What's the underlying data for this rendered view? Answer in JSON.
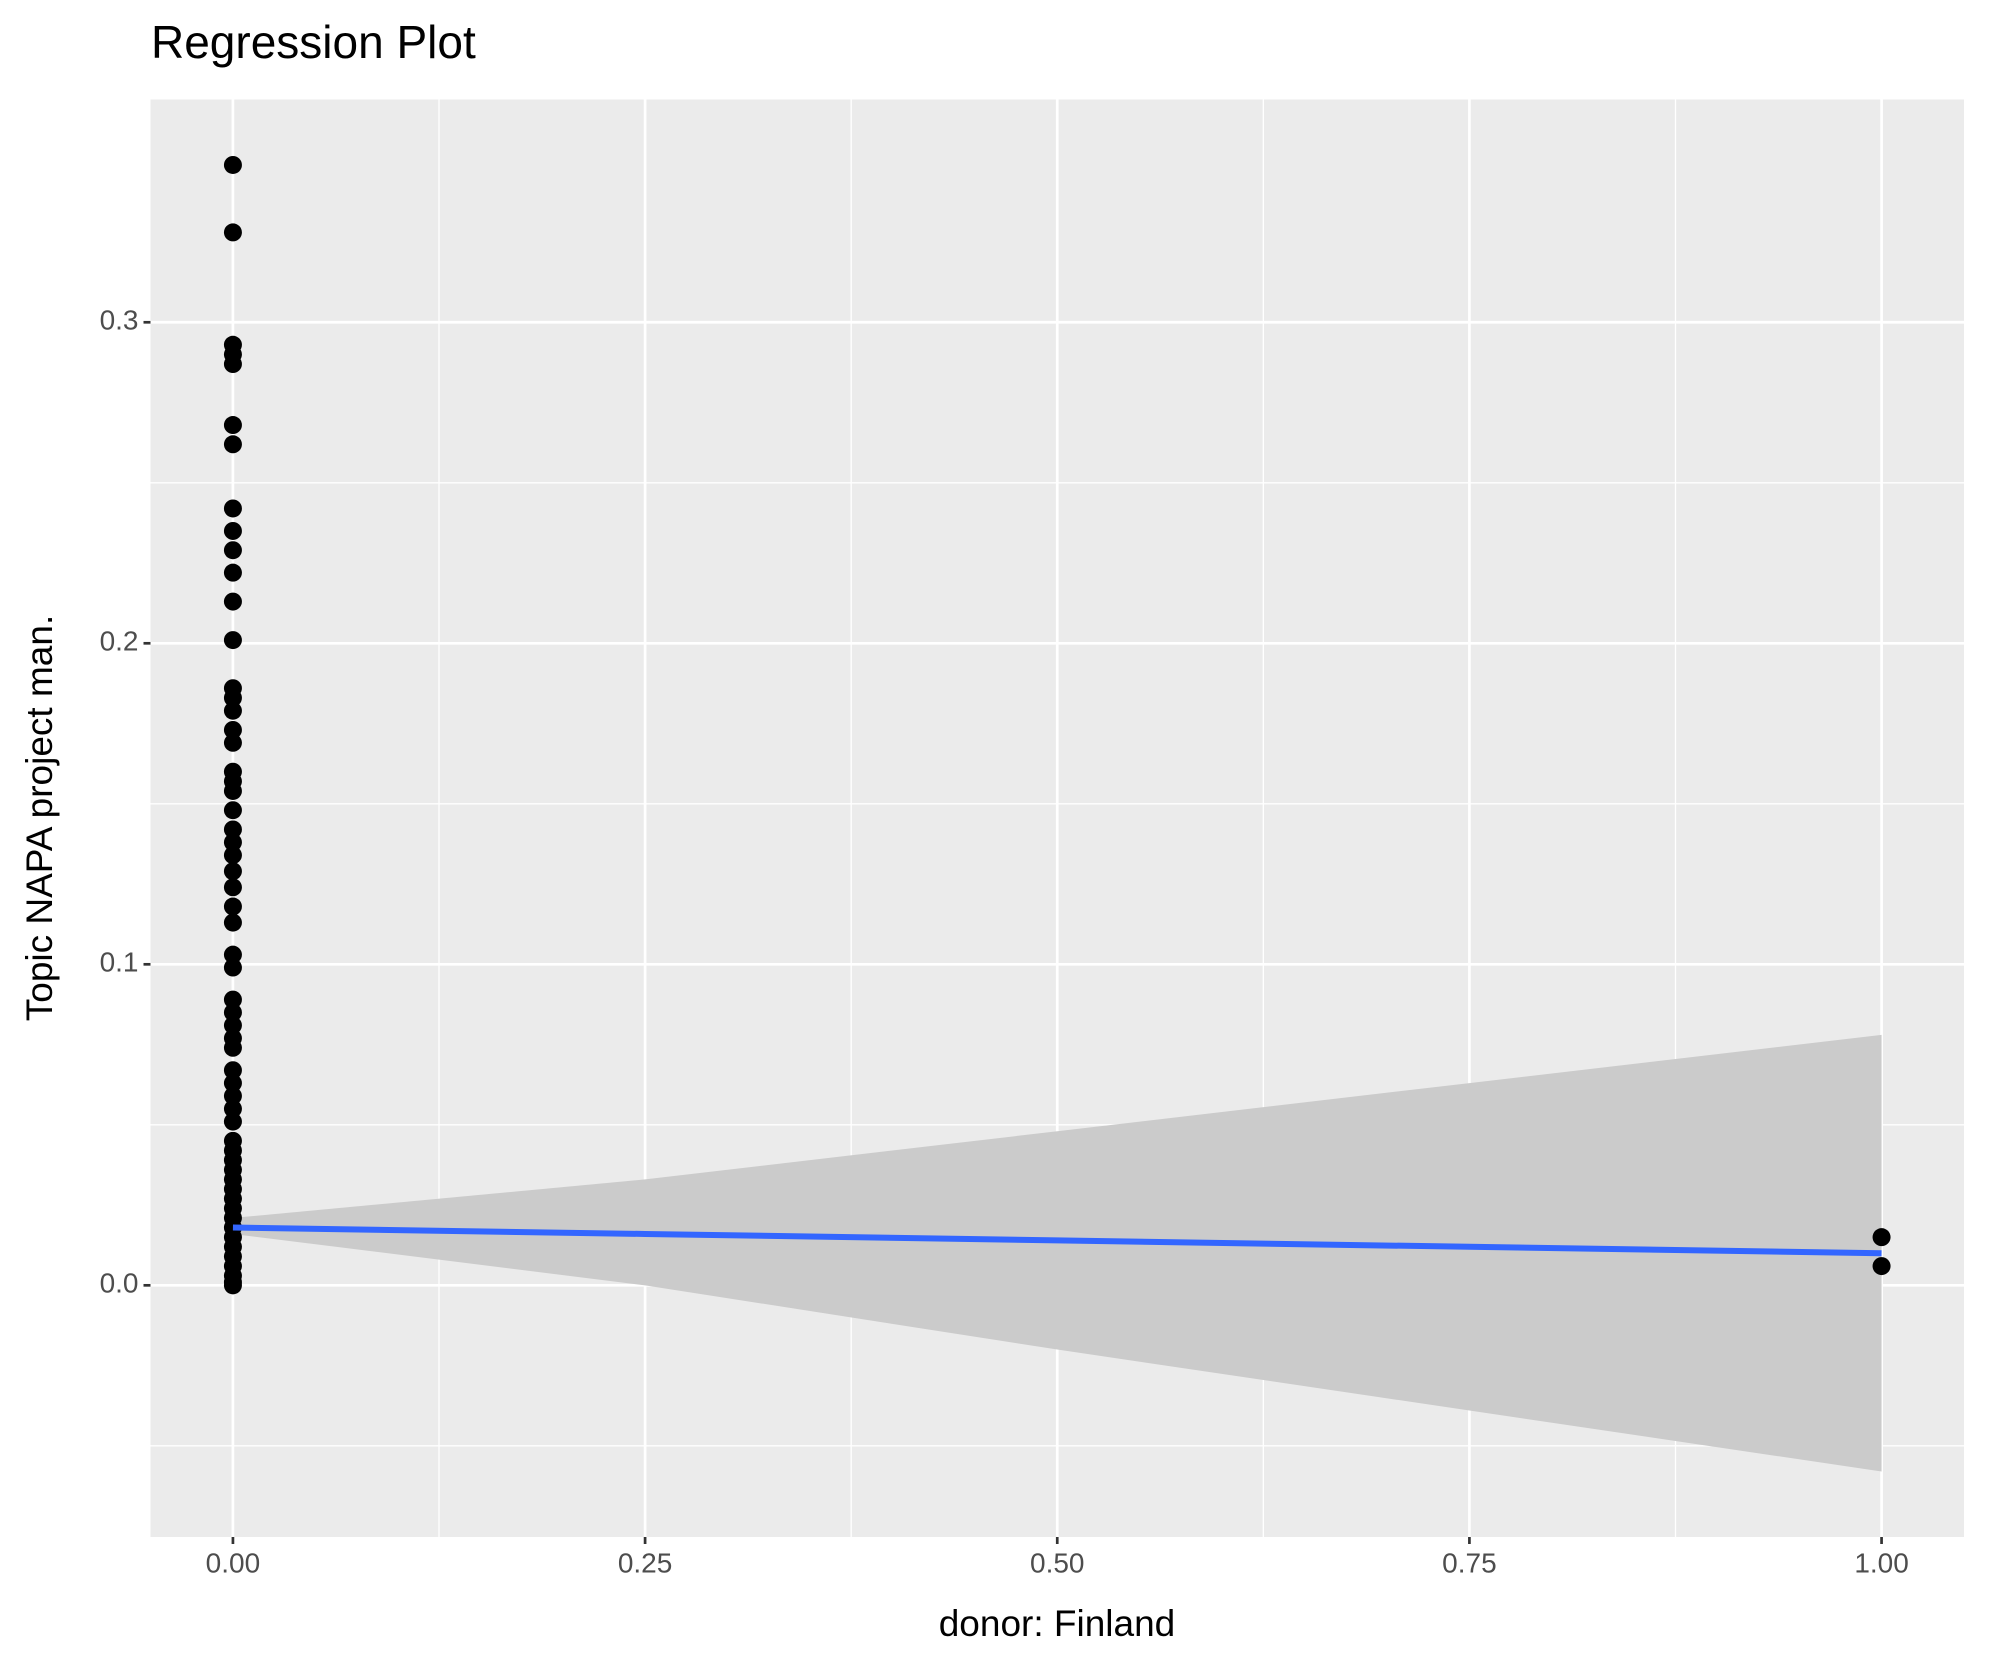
{
  "chart_data": {
    "type": "scatter",
    "title": "Regression Plot",
    "x_label": "donor: Finland",
    "y_label": "Topic NAPA project man.",
    "xlim": [
      -0.05,
      1.05
    ],
    "ylim": [
      -0.0784,
      0.3694
    ],
    "xticks": [
      {
        "value": 0,
        "label": "0.00"
      },
      {
        "value": 0.25,
        "label": "0.25"
      },
      {
        "value": 0.5,
        "label": "0.50"
      },
      {
        "value": 0.75,
        "label": "0.75"
      },
      {
        "value": 1,
        "label": "1.00"
      }
    ],
    "yticks": [
      {
        "value": 0,
        "label": "0.0"
      },
      {
        "value": 0.1,
        "label": "0.1"
      },
      {
        "value": 0.2,
        "label": "0.2"
      },
      {
        "value": 0.3,
        "label": "0.3"
      }
    ],
    "x_minor_ticks": [
      0.125,
      0.375,
      0.625,
      0.875
    ],
    "y_minor_ticks": [
      -0.05,
      0.05,
      0.15,
      0.25
    ],
    "grid": true,
    "points": {
      "color": "#000000",
      "x": [
        0,
        0,
        0,
        0,
        0,
        0,
        0,
        0,
        0,
        0,
        0,
        0,
        0,
        0,
        0,
        0,
        0,
        0,
        0,
        0,
        0,
        0,
        0,
        0,
        0,
        0,
        0,
        0,
        0,
        0,
        0,
        0,
        0,
        0,
        0,
        0,
        0,
        0,
        0,
        0,
        0,
        0,
        0,
        0,
        0,
        0,
        0,
        0,
        0,
        0,
        0,
        0,
        0,
        0,
        0,
        0,
        0,
        0,
        1,
        1
      ],
      "y": [
        0.349,
        0.328,
        0.293,
        0.29,
        0.287,
        0.268,
        0.262,
        0.242,
        0.235,
        0.229,
        0.222,
        0.213,
        0.201,
        0.186,
        0.183,
        0.179,
        0.173,
        0.169,
        0.16,
        0.157,
        0.154,
        0.148,
        0.142,
        0.138,
        0.134,
        0.129,
        0.124,
        0.118,
        0.113,
        0.103,
        0.099,
        0.089,
        0.085,
        0.081,
        0.077,
        0.074,
        0.067,
        0.063,
        0.059,
        0.055,
        0.051,
        0.045,
        0.042,
        0.039,
        0.036,
        0.033,
        0.03,
        0.027,
        0.024,
        0.021,
        0.018,
        0.015,
        0.012,
        0.009,
        0.006,
        0.003,
        0.001,
        0,
        0.015,
        0.006
      ]
    },
    "fit": {
      "color": "#3366ff",
      "ribbon_color": "#cbcbcb",
      "x": [
        0,
        0.25,
        0.5,
        0.75,
        1
      ],
      "y": [
        0.018,
        0.016,
        0.014,
        0.012,
        0.01
      ],
      "ymin": [
        0.016,
        0,
        -0.02,
        -0.039,
        -0.058
      ],
      "ymax": [
        0.021,
        0.033,
        0.048,
        0.063,
        0.078
      ]
    }
  }
}
